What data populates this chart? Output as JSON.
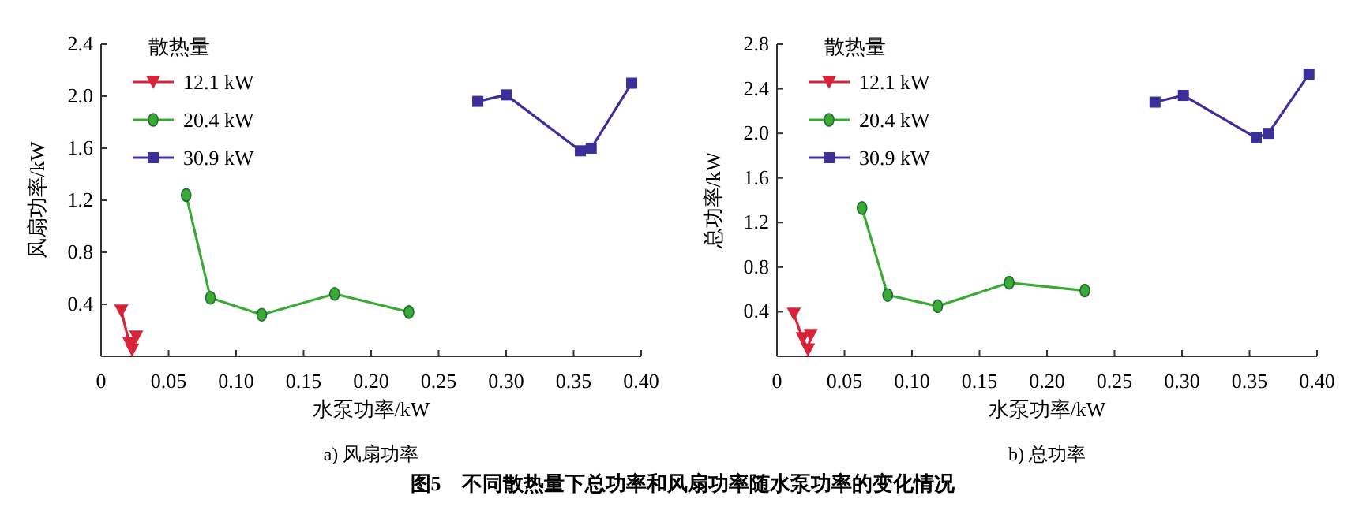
{
  "chart_data": [
    {
      "type": "line",
      "subtitle": "a) 风扇功率",
      "xlabel": "水泵功率/kW",
      "ylabel": "风扇功率/kW",
      "legend_title": "散热量",
      "legend": "top left",
      "xlim": [
        0,
        0.4
      ],
      "ylim": [
        0,
        2.4
      ],
      "xticks": [
        0,
        0.05,
        {
          "value": 0.1,
          "label": "0.10"
        },
        0.15,
        {
          "value": 0.2,
          "label": "0.20"
        },
        0.25,
        {
          "value": 0.3,
          "label": "0.30"
        },
        0.35,
        {
          "value": 0.4,
          "label": "0.40"
        }
      ],
      "yticks": [
        0.4,
        0.8,
        1.2,
        1.6,
        {
          "value": 2,
          "label": "2.0"
        },
        2.4
      ],
      "grid": false,
      "series": [
        {
          "name": "12.1 kW",
          "color": "#d6243a",
          "marker": "triangle",
          "x": [
            0.015,
            0.021,
            0.023,
            0.026
          ],
          "values": [
            0.35,
            0.1,
            0.05,
            0.15
          ]
        },
        {
          "name": "20.4 kW",
          "color": "#3aaa35",
          "marker": "circle",
          "x": [
            0.063,
            0.081,
            0.119,
            0.173,
            0.228
          ],
          "values": [
            1.24,
            0.45,
            0.32,
            0.48,
            0.34
          ]
        },
        {
          "name": "30.9 kW",
          "color": "#3b2f9a",
          "marker": "square",
          "x": [
            0.279,
            0.3,
            0.355,
            0.363,
            0.393
          ],
          "values": [
            1.96,
            2.01,
            1.58,
            1.6,
            2.1
          ]
        }
      ]
    },
    {
      "type": "line",
      "subtitle": "b) 总功率",
      "xlabel": "水泵功率/kW",
      "ylabel": "总功率/kW",
      "legend_title": "散热量",
      "legend": "top left",
      "xlim": [
        0,
        0.4
      ],
      "ylim": [
        0,
        2.8
      ],
      "xticks": [
        0,
        0.05,
        {
          "value": 0.1,
          "label": "0.10"
        },
        0.15,
        {
          "value": 0.2,
          "label": "0.20"
        },
        0.25,
        {
          "value": 0.3,
          "label": "0.30"
        },
        0.35,
        {
          "value": 0.4,
          "label": "0.40"
        }
      ],
      "yticks": [
        0.4,
        0.8,
        1.2,
        1.6,
        {
          "value": 2,
          "label": "2.0"
        },
        2.4,
        2.8
      ],
      "grid": false,
      "annotations": [
        "图5　不同散热量下总功率和风扇功率随水泵功率的变化情况"
      ],
      "series": [
        {
          "name": "12.1 kW",
          "color": "#d6243a",
          "marker": "triangle",
          "x": [
            0.0125,
            0.019,
            0.023,
            0.025
          ],
          "values": [
            0.38,
            0.16,
            0.06,
            0.19
          ]
        },
        {
          "name": "20.4 kW",
          "color": "#3aaa35",
          "marker": "circle",
          "x": [
            0.063,
            0.082,
            0.119,
            0.172,
            0.228
          ],
          "values": [
            1.33,
            0.55,
            0.45,
            0.66,
            0.59
          ]
        },
        {
          "name": "30.9 kW",
          "color": "#3b2f9a",
          "marker": "square",
          "x": [
            0.28,
            0.301,
            0.355,
            0.364,
            0.394
          ],
          "values": [
            2.28,
            2.34,
            1.96,
            2.0,
            2.53
          ]
        }
      ]
    }
  ]
}
